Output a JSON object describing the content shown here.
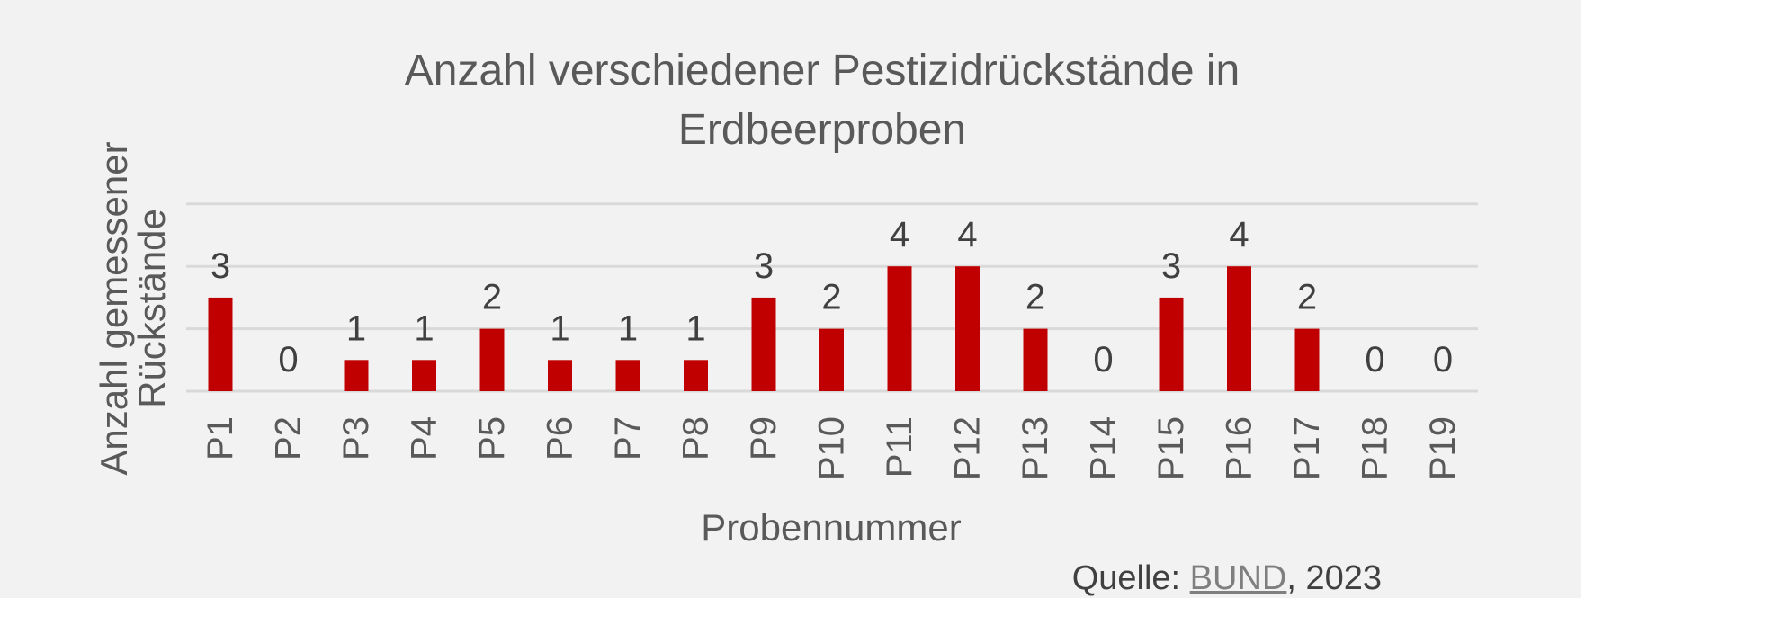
{
  "chart_data": {
    "type": "bar",
    "title": "Anzahl verschiedener Pestizidrückstände  in Erdbeerproben",
    "title_lines": [
      "Anzahl verschiedener Pestizidrückstände  in",
      "Erdbeerproben"
    ],
    "xlabel": "Probennummer",
    "ylabel": "Anzahl gemessener Rückstände",
    "ylabel_lines": [
      "Anzahl gemessener",
      "Rückstände"
    ],
    "categories": [
      "P1",
      "P2",
      "P3",
      "P4",
      "P5",
      "P6",
      "P7",
      "P8",
      "P9",
      "P10",
      "P11",
      "P12",
      "P13",
      "P14",
      "P15",
      "P16",
      "P17",
      "P18",
      "P19"
    ],
    "series": [
      {
        "values": [
          3,
          0,
          1,
          1,
          2,
          1,
          1,
          1,
          3,
          2,
          4,
          4,
          2,
          0,
          3,
          4,
          2,
          0,
          0
        ]
      }
    ],
    "ylim": [
      0,
      6
    ],
    "grid": true,
    "legend": "none",
    "bar_color": "#c00000",
    "data_labels": true
  },
  "source": {
    "prefix": "Quelle: ",
    "link_text": "BUND",
    "suffix": ", 2023"
  }
}
